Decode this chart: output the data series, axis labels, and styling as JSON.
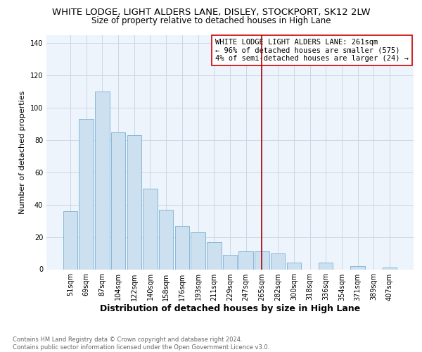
{
  "title": "WHITE LODGE, LIGHT ALDERS LANE, DISLEY, STOCKPORT, SK12 2LW",
  "subtitle": "Size of property relative to detached houses in High Lane",
  "xlabel": "Distribution of detached houses by size in High Lane",
  "ylabel": "Number of detached properties",
  "bar_labels": [
    "51sqm",
    "69sqm",
    "87sqm",
    "104sqm",
    "122sqm",
    "140sqm",
    "158sqm",
    "176sqm",
    "193sqm",
    "211sqm",
    "229sqm",
    "247sqm",
    "265sqm",
    "282sqm",
    "300sqm",
    "318sqm",
    "336sqm",
    "354sqm",
    "371sqm",
    "389sqm",
    "407sqm"
  ],
  "bar_values": [
    36,
    93,
    110,
    85,
    83,
    50,
    37,
    27,
    23,
    17,
    9,
    11,
    11,
    10,
    4,
    0,
    4,
    0,
    2,
    0,
    1
  ],
  "bar_color": "#cce0f0",
  "bar_edgecolor": "#7ab0d4",
  "vline_x_idx": 12,
  "vline_color": "#aa0000",
  "annotation_text": "WHITE LODGE LIGHT ALDERS LANE: 261sqm\n← 96% of detached houses are smaller (575)\n4% of semi-detached houses are larger (24) →",
  "ylim": [
    0,
    145
  ],
  "yticks": [
    0,
    20,
    40,
    60,
    80,
    100,
    120,
    140
  ],
  "title_fontsize": 9.5,
  "subtitle_fontsize": 8.5,
  "xlabel_fontsize": 9,
  "ylabel_fontsize": 8,
  "tick_fontsize": 7,
  "annot_fontsize": 7.5,
  "footnote": "Contains HM Land Registry data © Crown copyright and database right 2024.\nContains public sector information licensed under the Open Government Licence v3.0.",
  "background_color": "#ffffff",
  "plot_bg_color": "#eef4fb",
  "grid_color": "#c8d8e8"
}
